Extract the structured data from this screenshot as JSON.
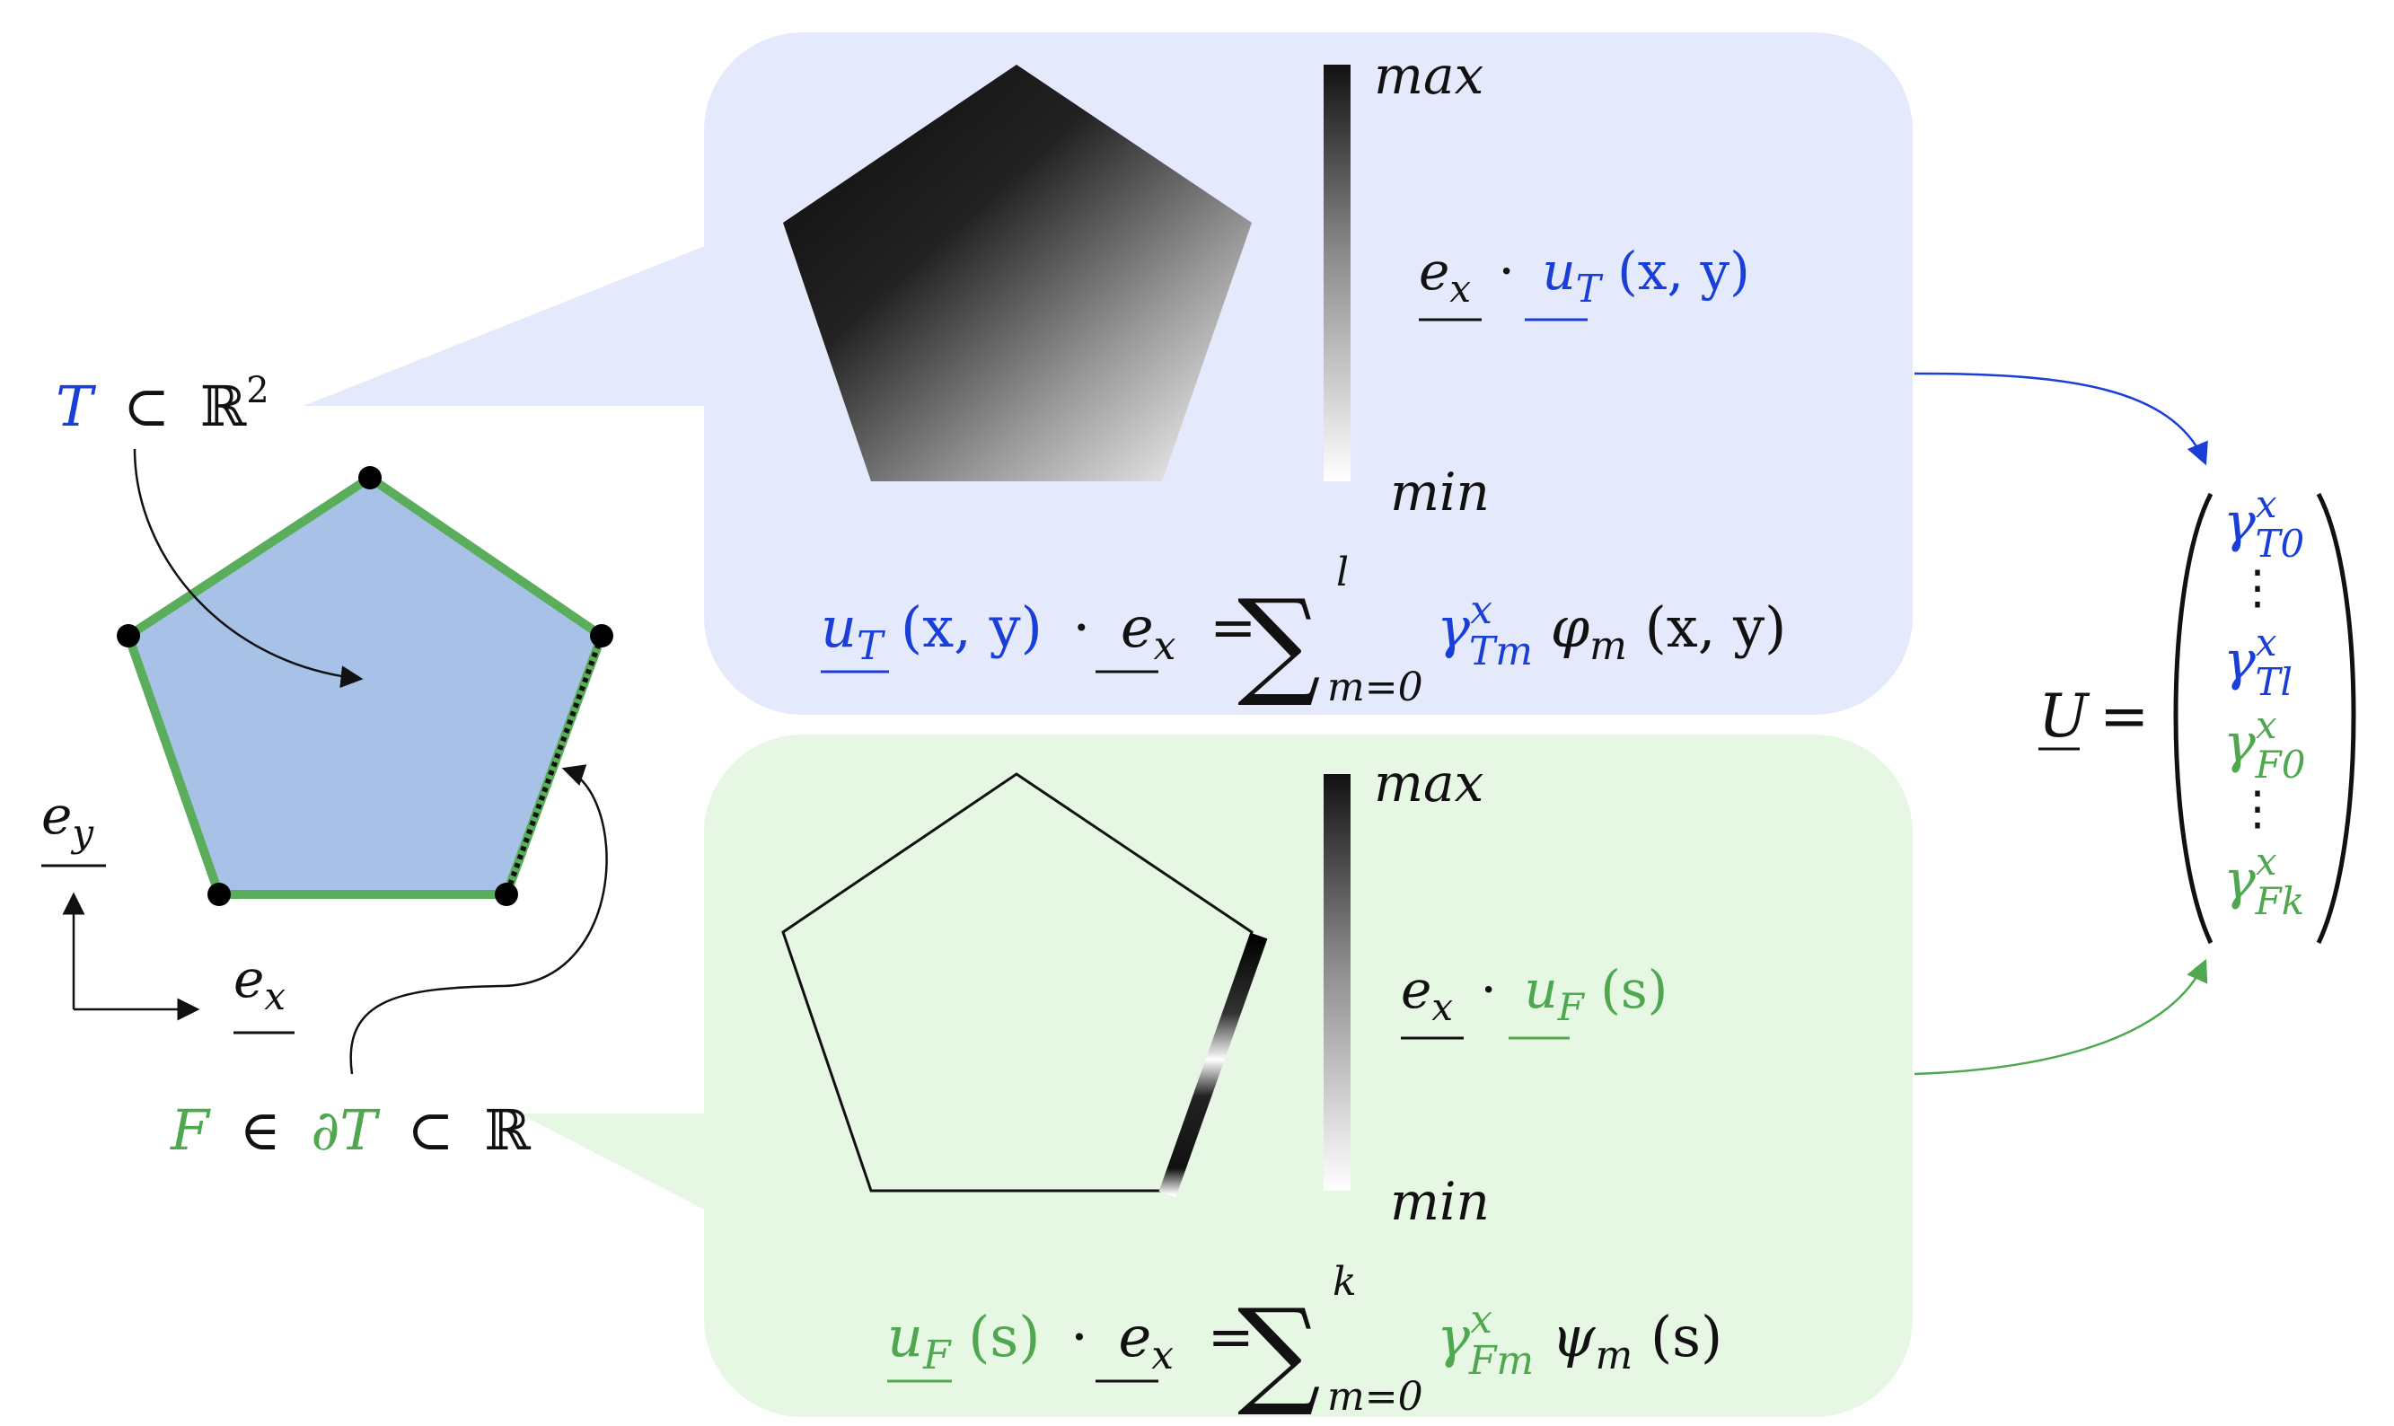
{
  "colors": {
    "blue": "#1a3fd6",
    "green": "#4fa84f",
    "green_edge": "#5aad5a",
    "cell_fill": "#a7c2e6",
    "panel_blue": "#e4e9fb",
    "panel_green": "#e6f8e4",
    "black": "#111111"
  },
  "left": {
    "t_label": {
      "sym": "T",
      "rel": "⊂",
      "space": "ℝ",
      "exp": "2"
    },
    "f_label": {
      "sym": "F",
      "in": "∈",
      "boundary": "∂T",
      "rel": "⊂",
      "space": "ℝ"
    },
    "axes": {
      "ey": "e",
      "ey_sub": "y",
      "ex": "e",
      "ex_sub": "x"
    }
  },
  "panel_T": {
    "colorbar_max": "max",
    "colorbar_min": "min",
    "dot_label": {
      "ex": "e",
      "ex_sub": "x",
      "dot": "·",
      "u": "u",
      "u_sub": "T",
      "args": "(x, y)"
    },
    "equation": {
      "u": "u",
      "u_sub": "T",
      "args": "(x, y)",
      "dot": "·",
      "ex": "e",
      "ex_sub": "x",
      "eq": "=",
      "sum": "∑",
      "sum_top": "l",
      "sum_bottom": "m=0",
      "gamma": "γ",
      "gamma_sup": "x",
      "gamma_sub": "Tm",
      "basis": "φ",
      "basis_sub": "m",
      "basis_args": "(x, y)"
    }
  },
  "panel_F": {
    "colorbar_max": "max",
    "colorbar_min": "min",
    "dot_label": {
      "ex": "e",
      "ex_sub": "x",
      "dot": "·",
      "u": "u",
      "u_sub": "F",
      "args": "(s)"
    },
    "equation": {
      "u": "u",
      "u_sub": "F",
      "args": "(s)",
      "dot": "·",
      "ex": "e",
      "ex_sub": "x",
      "eq": "=",
      "sum": "∑",
      "sum_top": "k",
      "sum_bottom": "m=0",
      "gamma": "γ",
      "gamma_sup": "x",
      "gamma_sub": "Fm",
      "basis": "ψ",
      "basis_sub": "m",
      "basis_args": "(s)"
    }
  },
  "vector": {
    "lhs": "U",
    "eq": "=",
    "entries": [
      {
        "gamma": "γ",
        "sup": "x",
        "sub": "T0",
        "group": "T"
      },
      {
        "dots": "⋮",
        "group": "T"
      },
      {
        "gamma": "γ",
        "sup": "x",
        "sub": "Tl",
        "group": "T"
      },
      {
        "gamma": "γ",
        "sup": "x",
        "sub": "F0",
        "group": "F"
      },
      {
        "dots": "⋮",
        "group": "F"
      },
      {
        "gamma": "γ",
        "sup": "x",
        "sub": "Fk",
        "group": "F"
      }
    ]
  }
}
